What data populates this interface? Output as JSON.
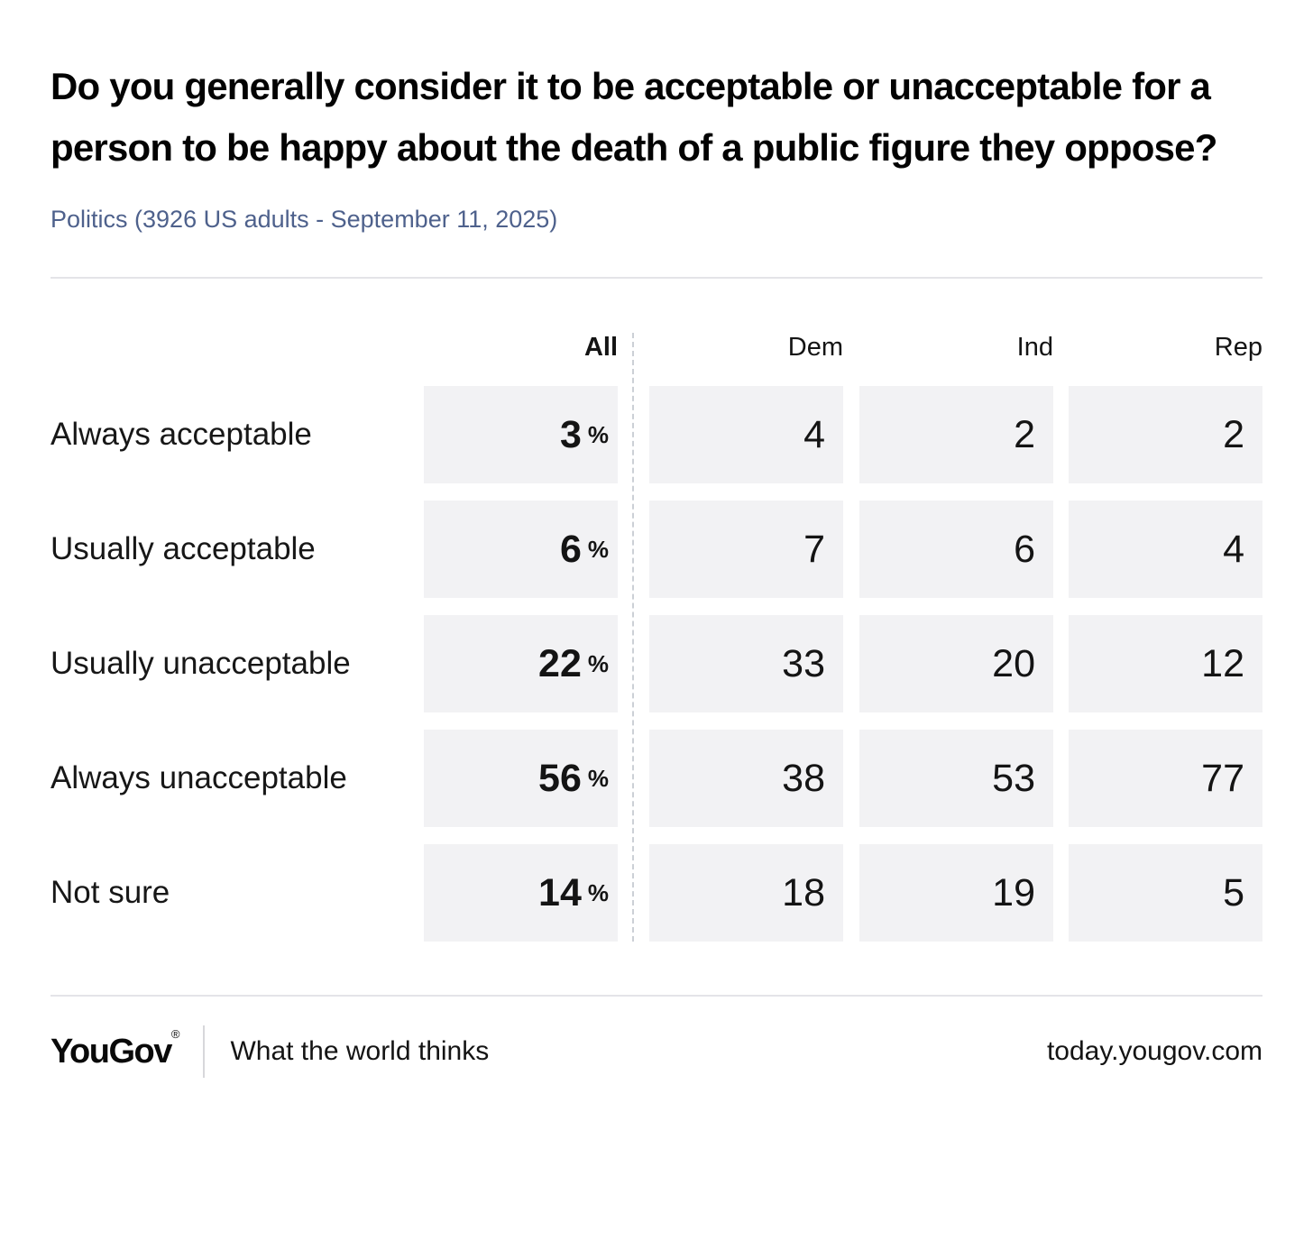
{
  "chart_data": {
    "type": "table",
    "title": "Do you generally consider it to be acceptable or unacceptable for a person to be happy about the death of a public figure they oppose?",
    "subtitle": "Politics (3926 US adults - September 11, 2025)",
    "unit_all_column": "%",
    "columns": [
      "All",
      "Dem",
      "Ind",
      "Rep"
    ],
    "rows": [
      {
        "label": "Always acceptable",
        "all": 3,
        "dem": 4,
        "ind": 2,
        "rep": 2
      },
      {
        "label": "Usually acceptable",
        "all": 6,
        "dem": 7,
        "ind": 6,
        "rep": 4
      },
      {
        "label": "Usually unacceptable",
        "all": 22,
        "dem": 33,
        "ind": 20,
        "rep": 12
      },
      {
        "label": "Always unacceptable",
        "all": 56,
        "dem": 38,
        "ind": 53,
        "rep": 77
      },
      {
        "label": "Not sure",
        "all": 14,
        "dem": 18,
        "ind": 19,
        "rep": 5
      }
    ],
    "layout_hints": {
      "all_column_separated_by_dashed_line": true,
      "value_cell_background": "#f2f2f4"
    }
  },
  "footer": {
    "logo": "YouGov",
    "registered_mark": "®",
    "tagline": "What the world thinks",
    "site": "today.yougov.com"
  },
  "colors": {
    "subtitle_text": "#4e618c",
    "cell_background": "#f2f2f4",
    "rule": "#e4e4e8",
    "dashed_divider": "#ccd0d6",
    "text": "#141414"
  }
}
